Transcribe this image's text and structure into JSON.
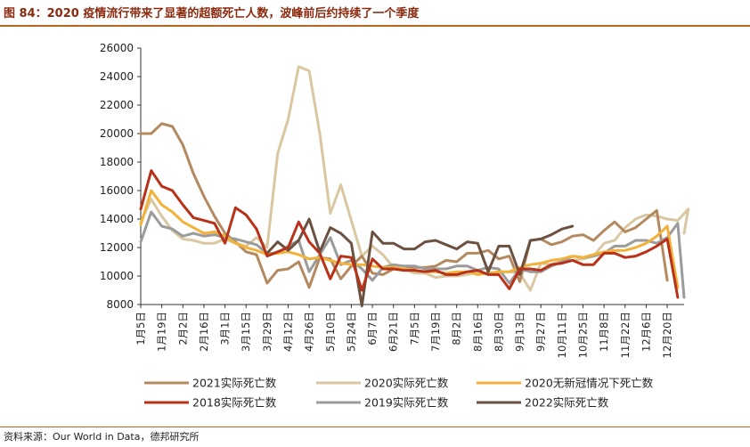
{
  "title": "图 84：2020 疫情流行带来了显著的超额死亡人数，波峰前后约持续了一个季度",
  "source": "资料来源：Our World in Data，德邦研究所",
  "chart_data": {
    "type": "line",
    "ylim": [
      8000,
      26000
    ],
    "y_ticks": [
      8000,
      10000,
      12000,
      14000,
      16000,
      18000,
      20000,
      22000,
      24000,
      26000
    ],
    "x_tick_labels": [
      "1月5日",
      "1月19日",
      "2月2日",
      "2月16日",
      "3月1日",
      "3月15日",
      "3月29日",
      "4月12日",
      "4月26日",
      "5月10日",
      "5月24日",
      "6月7日",
      "6月21日",
      "7月5日",
      "7月19日",
      "8月2日",
      "8月16日",
      "8月30日",
      "9月13日",
      "9月27日",
      "10月11日",
      "10月25日",
      "11月8日",
      "11月22日",
      "12月6日",
      "12月20日"
    ],
    "x_start_week": 1,
    "x_end_week": 52.6,
    "legend_position": "bottom",
    "series": [
      {
        "name": "2021实际死亡数",
        "color": "#b5895f",
        "values": [
          20000,
          20000,
          20700,
          20500,
          19200,
          17200,
          15600,
          14200,
          13000,
          12400,
          11700,
          11500,
          9500,
          10400,
          10500,
          11000,
          9200,
          11300,
          11200,
          9800,
          10700,
          11400,
          10200,
          10100,
          10500,
          10500,
          10600,
          10600,
          10700,
          11100,
          11000,
          11600,
          11600,
          11800,
          11200,
          11400,
          9600,
          12500,
          12600,
          12200,
          12400,
          12800,
          12900,
          12500,
          13200,
          13800,
          13100,
          13400,
          14000,
          14600,
          9700
        ]
      },
      {
        "name": "2020实际死亡数",
        "color": "#d9c7a1",
        "values": [
          13800,
          15400,
          14200,
          13200,
          12600,
          12500,
          12300,
          12300,
          12600,
          12300,
          12100,
          12700,
          12000,
          18600,
          21000,
          24700,
          24400,
          20000,
          14400,
          16400,
          13900,
          11400,
          12100,
          11500,
          10600,
          10500,
          10200,
          10200,
          9900,
          10000,
          10000,
          10100,
          10300,
          10200,
          10300,
          10300,
          10200,
          9000,
          10900,
          10800,
          11100,
          11100,
          11200,
          11400,
          12300,
          12500,
          13400,
          14000,
          14300,
          14200,
          14000,
          13900,
          14700,
          13000
        ]
      },
      {
        "name": "2020无新冠情况下死亡数",
        "color": "#f2b23a",
        "values": [
          13600,
          16000,
          15000,
          14500,
          13800,
          13400,
          13000,
          13100,
          12800,
          12300,
          12000,
          11800,
          11500,
          11600,
          11700,
          11500,
          11200,
          11300,
          11100,
          10900,
          10800,
          10800,
          10700,
          10600,
          10600,
          10500,
          10400,
          10300,
          10300,
          10200,
          10300,
          10300,
          10100,
          10200,
          10300,
          10300,
          10600,
          10800,
          10900,
          11100,
          11200,
          11400,
          11300,
          11500,
          11700,
          11800,
          11800,
          12000,
          12300,
          12800,
          13500,
          9200
        ]
      },
      {
        "name": "2018实际死亡数",
        "color": "#b8321a",
        "values": [
          14700,
          17400,
          16300,
          16000,
          15000,
          14100,
          13900,
          13700,
          12300,
          14800,
          14300,
          13300,
          11400,
          11700,
          12000,
          13800,
          12400,
          11600,
          9800,
          11400,
          11300,
          9000,
          11200,
          10500,
          10500,
          10400,
          10400,
          10300,
          10400,
          10100,
          10100,
          10300,
          10400,
          10100,
          10100,
          9100,
          10500,
          10500,
          10400,
          10800,
          10900,
          11100,
          10800,
          10800,
          11600,
          11600,
          11300,
          11400,
          11700,
          12100,
          12600,
          8500
        ]
      },
      {
        "name": "2019实际死亡数",
        "color": "#9b9b9b",
        "values": [
          12400,
          14500,
          13500,
          13300,
          12800,
          13000,
          12800,
          12900,
          12700,
          12600,
          12400,
          12200,
          11600,
          11600,
          12100,
          12500,
          10300,
          11500,
          12700,
          10800,
          11100,
          10500,
          9700,
          10600,
          10800,
          10700,
          10700,
          10500,
          10500,
          10500,
          10700,
          10700,
          10400,
          10600,
          10500,
          9500,
          10500,
          10300,
          10300,
          10700,
          11000,
          11400,
          11300,
          11400,
          11600,
          12100,
          12100,
          12500,
          12500,
          12300,
          12700,
          13700,
          8500
        ]
      },
      {
        "name": "2022实际死亡数",
        "color": "#6b5140",
        "values": [
          null,
          null,
          null,
          null,
          null,
          null,
          null,
          null,
          null,
          null,
          null,
          null,
          11600,
          12400,
          11800,
          12500,
          14000,
          11700,
          13400,
          13000,
          12300,
          7900,
          13100,
          12300,
          12300,
          11900,
          11900,
          12400,
          12500,
          12200,
          11900,
          12400,
          12300,
          10300,
          12100,
          12100,
          10100,
          12500,
          12600,
          12900,
          13300,
          13500
        ]
      }
    ]
  }
}
